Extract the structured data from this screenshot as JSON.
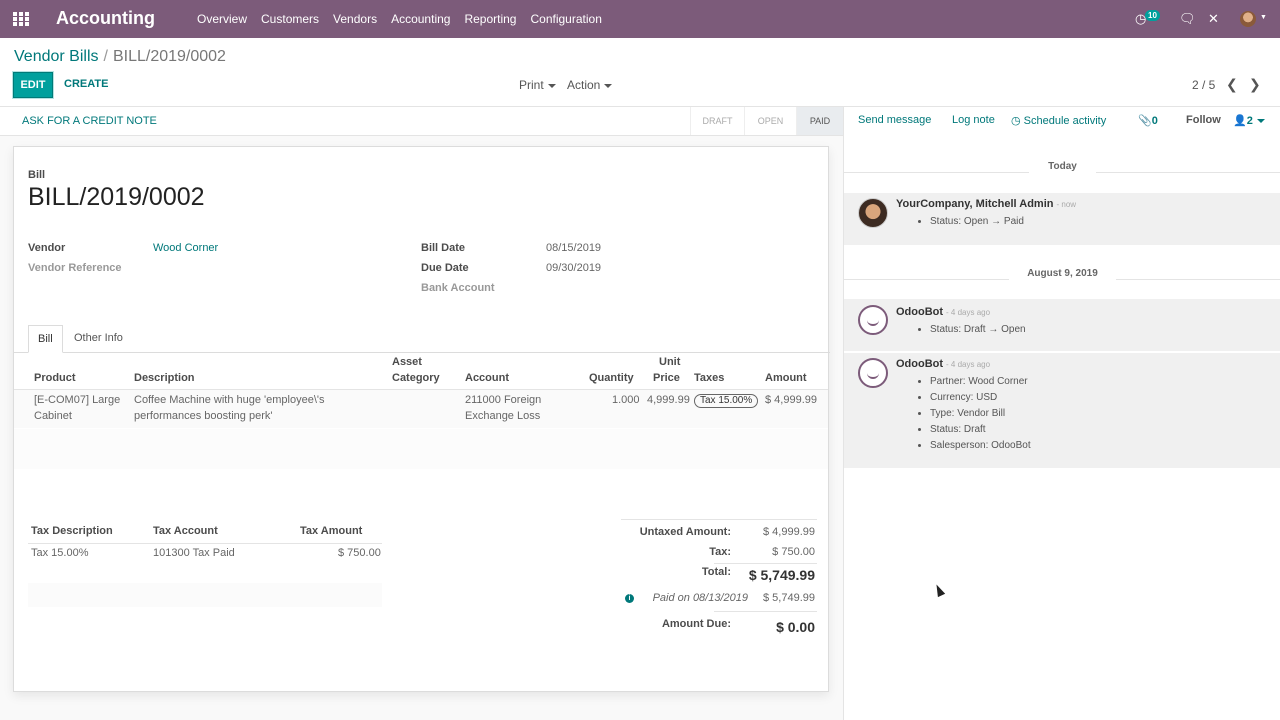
{
  "nav": {
    "app_title": "Accounting",
    "menu": [
      "Overview",
      "Customers",
      "Vendors",
      "Accounting",
      "Reporting",
      "Configuration"
    ],
    "activity_count": "10",
    "accent_color": "#7c5b7a"
  },
  "breadcrumb": {
    "parent": "Vendor Bills",
    "separator": "/",
    "current": "BILL/2019/0002"
  },
  "toolbar": {
    "edit": "EDIT",
    "create": "CREATE",
    "print": "Print",
    "action": "Action",
    "pager": "2 / 5",
    "prev_icon": "chevron-left-icon",
    "next_icon": "chevron-right-icon"
  },
  "statusbar": {
    "credit_note": "ASK FOR A CREDIT NOTE",
    "stages": [
      "DRAFT",
      "OPEN",
      "PAID"
    ],
    "active_stage": "PAID"
  },
  "form": {
    "doc_type": "Bill",
    "doc_name": "BILL/2019/0002",
    "vendor_label": "Vendor",
    "vendor_value": "Wood Corner",
    "vendor_ref_label": "Vendor Reference",
    "bill_date_label": "Bill Date",
    "bill_date_value": "08/15/2019",
    "due_date_label": "Due Date",
    "due_date_value": "09/30/2019",
    "bank_account_label": "Bank Account"
  },
  "tabs": [
    "Bill",
    "Other Info"
  ],
  "lines": {
    "headers": {
      "product": "Product",
      "description": "Description",
      "asset_1": "Asset",
      "asset_2": "Category",
      "account": "Account",
      "quantity": "Quantity",
      "unit_1": "Unit",
      "unit_2": "Price",
      "taxes": "Taxes",
      "amount": "Amount"
    },
    "row": {
      "product_1": "[E-COM07] Large",
      "product_2": "Cabinet",
      "description_1": "Coffee Machine with huge 'employee\\'s",
      "description_2": "performances boosting perk'",
      "account_1": "211000 Foreign",
      "account_2": "Exchange Loss",
      "quantity": "1.000",
      "unit_price": "4,999.99",
      "tax": "Tax 15.00%",
      "amount": "$ 4,999.99"
    }
  },
  "tax_table": {
    "headers": {
      "description": "Tax Description",
      "account": "Tax Account",
      "amount": "Tax Amount"
    },
    "row": {
      "description": "Tax 15.00%",
      "account": "101300 Tax Paid",
      "amount": "$ 750.00"
    }
  },
  "totals": {
    "untaxed_label": "Untaxed Amount:",
    "untaxed_value": "$ 4,999.99",
    "tax_label": "Tax:",
    "tax_value": "$ 750.00",
    "total_label": "Total:",
    "total_value": "$ 5,749.99",
    "paid_label": "Paid on 08/13/2019",
    "paid_value": "$ 5,749.99",
    "due_label": "Amount Due:",
    "due_value": "$ 0.00"
  },
  "chatter": {
    "send_message": "Send message",
    "log_note": "Log note",
    "schedule_activity": "Schedule activity",
    "attachments_count": "0",
    "follow": "Follow",
    "followers_count": "2",
    "today": "Today",
    "older_date": "August 9, 2019",
    "messages": [
      {
        "author": "YourCompany, Mitchell Admin",
        "when": "- now",
        "items": [
          "Status: Open → Paid"
        ]
      },
      {
        "author": "OdooBot",
        "when": "- 4 days ago",
        "items": [
          "Status: Draft → Open"
        ]
      },
      {
        "author": "OdooBot",
        "when": "- 4 days ago",
        "items": [
          "Partner: Wood Corner",
          "Currency: USD",
          "Type: Vendor Bill",
          "Status: Draft",
          "Salesperson: OdooBot"
        ]
      }
    ]
  }
}
